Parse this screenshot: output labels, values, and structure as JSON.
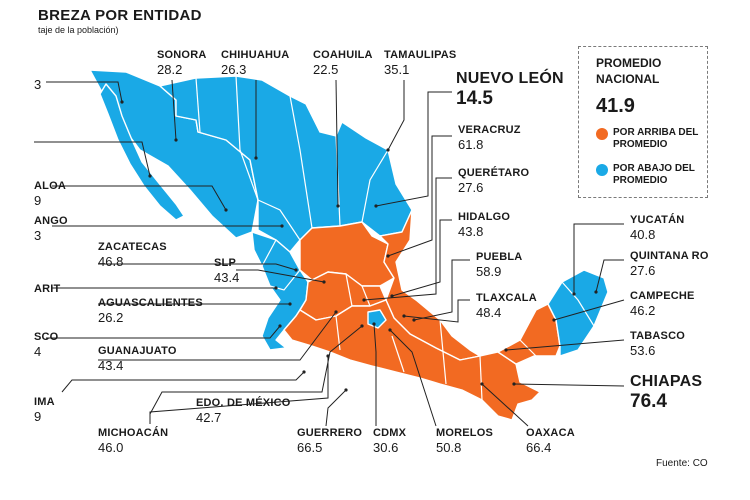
{
  "title": "BREZA POR ENTIDAD",
  "subtitle": "taje de la población)",
  "source": "Fuente: CO",
  "colors": {
    "above": "#f26a22",
    "below": "#1aa9e6",
    "border": "#ffffff",
    "leader": "#222222"
  },
  "legend": {
    "heading_line1": "PROMEDIO",
    "heading_line2": "NACIONAL",
    "average": "41.9",
    "above_line1": "POR ARRIBA DEL",
    "above_line2": "PROMEDIO",
    "below_line1": "POR ABAJO DEL",
    "below_line2": "PROMEDIO"
  },
  "states": [
    {
      "id": "baja-california",
      "name": "",
      "value": "3",
      "category": "below"
    },
    {
      "id": "baja-california-sur",
      "name": "",
      "value": "",
      "category": "below"
    },
    {
      "id": "sinaloa",
      "name": "ALOA",
      "value": "9",
      "category": "below"
    },
    {
      "id": "durango",
      "name": "ANGO",
      "value": "3",
      "category": "below"
    },
    {
      "id": "nayarit",
      "name": "ARIT",
      "value": "",
      "category": "below"
    },
    {
      "id": "jalisco",
      "name": "SCO",
      "value": "4",
      "category": "below"
    },
    {
      "id": "colima",
      "name": "IMA",
      "value": "9",
      "category": "below"
    },
    {
      "id": "sonora",
      "name": "SONORA",
      "value": "28.2",
      "category": "below"
    },
    {
      "id": "chihuahua",
      "name": "CHIHUAHUA",
      "value": "26.3",
      "category": "below"
    },
    {
      "id": "coahuila",
      "name": "COAHUILA",
      "value": "22.5",
      "category": "below"
    },
    {
      "id": "tamaulipas",
      "name": "TAMAULIPAS",
      "value": "35.1",
      "category": "below"
    },
    {
      "id": "nuevo-leon",
      "name": "NUEVO LEÓN",
      "value": "14.5",
      "category": "below"
    },
    {
      "id": "veracruz",
      "name": "VERACRUZ",
      "value": "61.8",
      "category": "above"
    },
    {
      "id": "queretaro",
      "name": "QUERÉTARO",
      "value": "27.6",
      "category": "below"
    },
    {
      "id": "hidalgo",
      "name": "HIDALGO",
      "value": "43.8",
      "category": "above"
    },
    {
      "id": "puebla",
      "name": "PUEBLA",
      "value": "58.9",
      "category": "above"
    },
    {
      "id": "tlaxcala",
      "name": "TLAXCALA",
      "value": "48.4",
      "category": "above"
    },
    {
      "id": "zacatecas",
      "name": "ZACATECAS",
      "value": "46.8",
      "category": "above"
    },
    {
      "id": "slp",
      "name": "SLP",
      "value": "43.4",
      "category": "above"
    },
    {
      "id": "aguascalientes",
      "name": "AGUASCALIENTES",
      "value": "26.2",
      "category": "below"
    },
    {
      "id": "guanajuato",
      "name": "GUANAJUATO",
      "value": "43.4",
      "category": "above"
    },
    {
      "id": "edomex",
      "name": "EDO. DE MÉXICO",
      "value": "42.7",
      "category": "above"
    },
    {
      "id": "michoacan",
      "name": "MICHOACÁN",
      "value": "46.0",
      "category": "above"
    },
    {
      "id": "guerrero",
      "name": "GUERRERO",
      "value": "66.5",
      "category": "above"
    },
    {
      "id": "cdmx",
      "name": "CDMX",
      "value": "30.6",
      "category": "below"
    },
    {
      "id": "morelos",
      "name": "MORELOS",
      "value": "50.8",
      "category": "above"
    },
    {
      "id": "oaxaca",
      "name": "OAXACA",
      "value": "66.4",
      "category": "above"
    },
    {
      "id": "chiapas",
      "name": "CHIAPAS",
      "value": "76.4",
      "category": "above"
    },
    {
      "id": "tabasco",
      "name": "TABASCO",
      "value": "53.6",
      "category": "above"
    },
    {
      "id": "campeche",
      "name": "CAMPECHE",
      "value": "46.2",
      "category": "above"
    },
    {
      "id": "quintana-roo",
      "name": "QUINTANA RO",
      "value": "27.6",
      "category": "below"
    },
    {
      "id": "yucatan",
      "name": "YUCATÁN",
      "value": "40.8",
      "category": "below"
    }
  ]
}
